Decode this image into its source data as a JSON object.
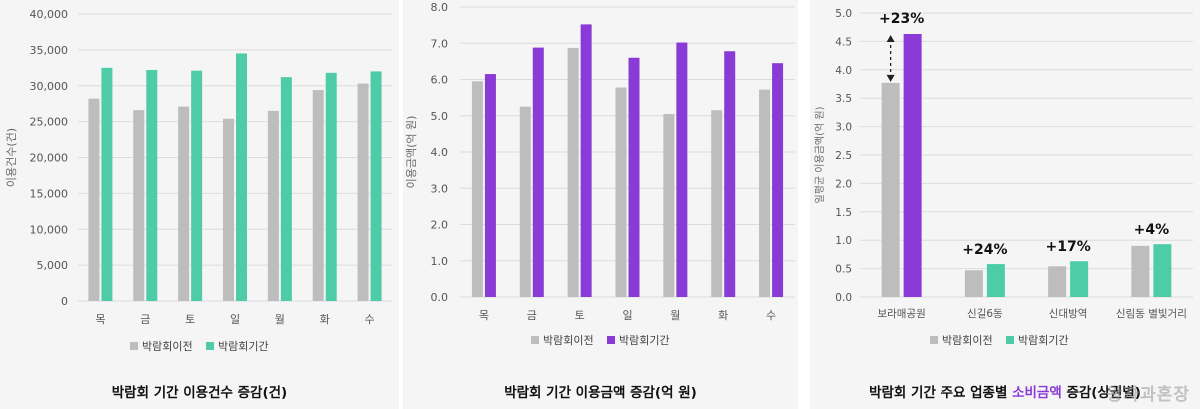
{
  "chart_data": [
    {
      "type": "bar",
      "title": "박람회 기간 이용건수 증감(건)",
      "ylabel": "이용건수(건)",
      "ylim": [
        0,
        40000
      ],
      "yticks": [
        "0",
        "5,000",
        "10,000",
        "15,000",
        "20,000",
        "25,000",
        "30,000",
        "35,000",
        "40,000"
      ],
      "categories": [
        "목",
        "금",
        "토",
        "일",
        "월",
        "화",
        "수"
      ],
      "series": [
        {
          "name": "박람회이전",
          "color": "#bdbdbd",
          "values": [
            28200,
            26600,
            27100,
            25400,
            26500,
            29400,
            30300
          ]
        },
        {
          "name": "박람회기간",
          "color": "#4ecca8",
          "values": [
            32500,
            32200,
            32100,
            34500,
            31200,
            31800,
            32000
          ]
        }
      ],
      "legend": "bottom",
      "grid": true
    },
    {
      "type": "bar",
      "title": "박람회 기간 이용금액 증감(억 원)",
      "ylabel": "이용금액(억 원)",
      "ylim": [
        0,
        8
      ],
      "yticks": [
        "0.0",
        "1.0",
        "2.0",
        "3.0",
        "4.0",
        "5.0",
        "6.0",
        "7.0",
        "8.0"
      ],
      "categories": [
        "목",
        "금",
        "토",
        "일",
        "월",
        "화",
        "수"
      ],
      "series": [
        {
          "name": "박람회이전",
          "color": "#bdbdbd",
          "values": [
            5.95,
            5.25,
            6.87,
            5.78,
            5.05,
            5.15,
            5.72
          ]
        },
        {
          "name": "박람회기간",
          "color": "#8a3ad6",
          "values": [
            6.15,
            6.88,
            7.52,
            6.6,
            7.02,
            6.78,
            6.45
          ]
        }
      ],
      "legend": "bottom",
      "grid": true
    },
    {
      "type": "bar",
      "title_parts": [
        "박람회 기간 주요 업종별 ",
        "소비금액",
        " 증감(상권별)"
      ],
      "ylabel": "일평균 이용금액(억 원)",
      "ylim": [
        0,
        5
      ],
      "yticks": [
        "0.0",
        "0.5",
        "1.0",
        "1.5",
        "2.0",
        "2.5",
        "3.0",
        "3.5",
        "4.0",
        "4.5",
        "5.0"
      ],
      "categories": [
        "보라매공원",
        "신길6동",
        "신대방역",
        "신림동 별빛거리"
      ],
      "series": [
        {
          "name": "박람회이전",
          "color": "#bdbdbd",
          "values": [
            3.77,
            0.47,
            0.54,
            0.9
          ]
        },
        {
          "name": "박람회기간",
          "color": "#4ecca8",
          "highlight_color": "#8a3ad6",
          "values": [
            4.63,
            0.58,
            0.63,
            0.93
          ]
        }
      ],
      "annotations": [
        "+23%",
        "+24%",
        "+17%",
        "+4%"
      ],
      "legend": "bottom",
      "grid": true
    }
  ],
  "watermark": "왕자과혼장"
}
